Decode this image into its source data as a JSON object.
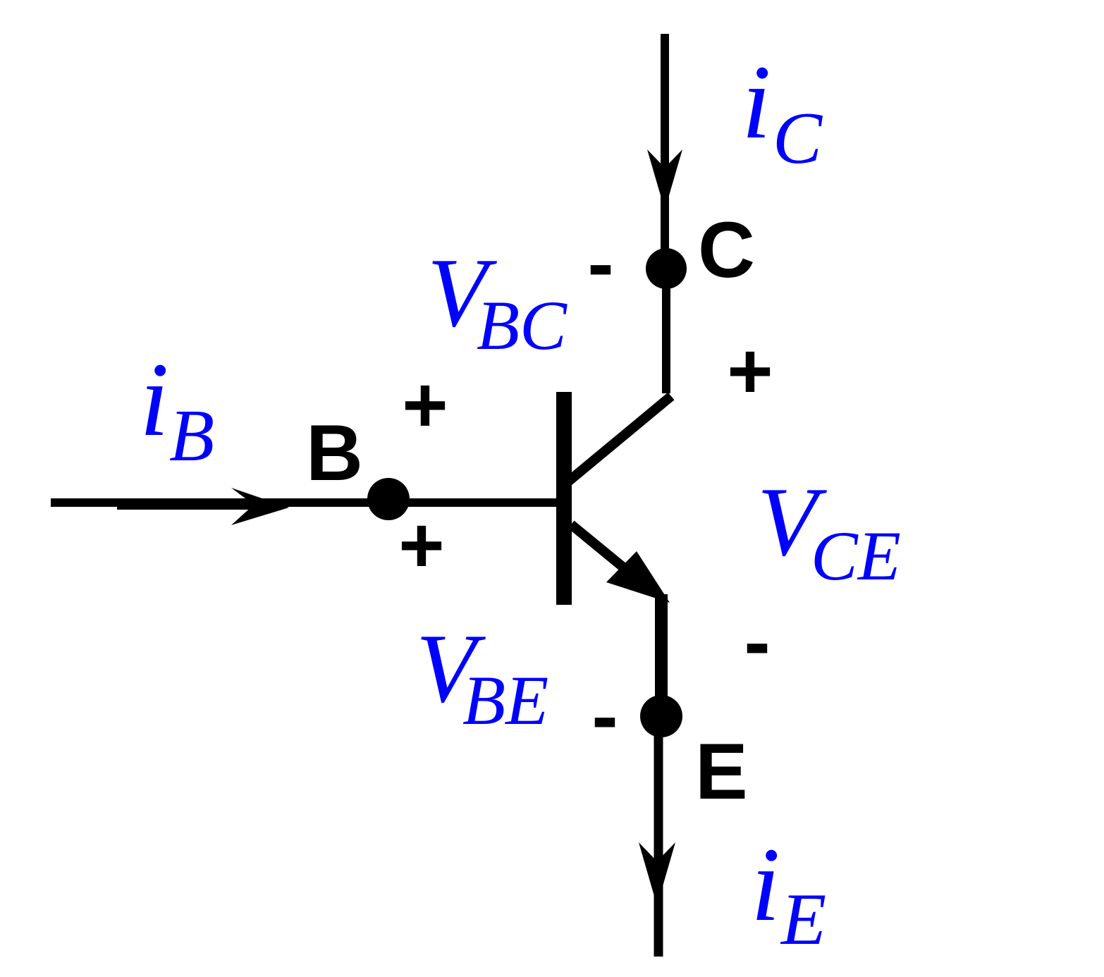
{
  "colors": {
    "wire": "#000000",
    "symbol_text": "#0000ff"
  },
  "terminals": {
    "collector": "C",
    "base": "B",
    "emitter": "E"
  },
  "currents": {
    "collector": {
      "symbol": "i",
      "subscript": "C"
    },
    "base": {
      "symbol": "i",
      "subscript": "B"
    },
    "emitter": {
      "symbol": "i",
      "subscript": "E"
    }
  },
  "voltages": {
    "bc": {
      "symbol": "V",
      "subscript": "BC"
    },
    "be": {
      "symbol": "V",
      "subscript": "BE"
    },
    "ce": {
      "symbol": "V",
      "subscript": "CE"
    }
  },
  "polarities": {
    "plus": "+",
    "minus": "-"
  }
}
